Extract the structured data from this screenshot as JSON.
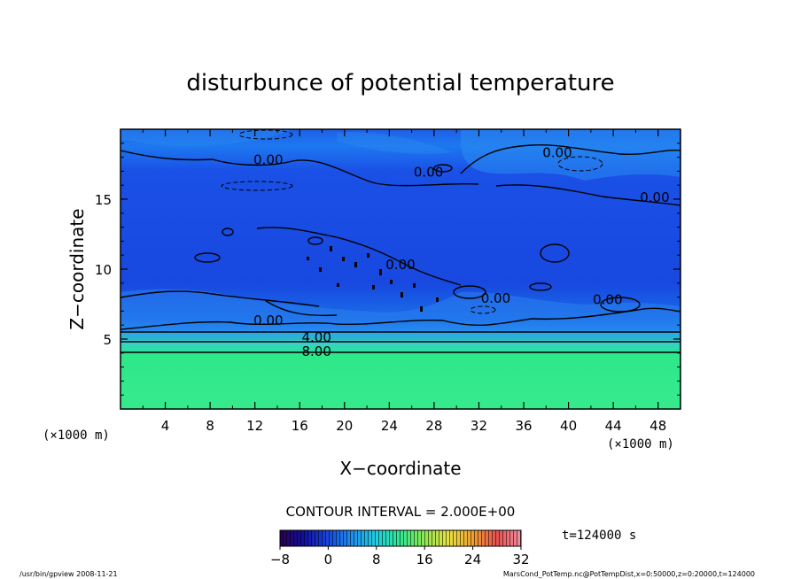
{
  "chart_data": {
    "type": "heatmap",
    "title": "disturbunce of potential temperature",
    "xlabel": "X−coordinate",
    "ylabel": "Z−coordinate",
    "x_unit_left": "(×1000 m)",
    "x_unit_right": "(×1000 m)",
    "xlim": [
      0,
      50
    ],
    "ylim": [
      0,
      20
    ],
    "x_ticks": [
      4,
      8,
      12,
      16,
      20,
      24,
      28,
      32,
      36,
      40,
      44,
      48
    ],
    "y_ticks": [
      5,
      10,
      15
    ],
    "contour_interval": "CONTOUR INTERVAL = 2.000E+00",
    "time_label": "t=124000 s",
    "colorbar": {
      "min": -8,
      "max": 32,
      "tick_labels": [
        "−8",
        "0",
        "8",
        "16",
        "24",
        "32"
      ],
      "tick_values": [
        -8,
        0,
        8,
        16,
        24,
        32
      ]
    },
    "contour_labels": [
      {
        "text": "0.00",
        "x": 13.2,
        "z": 17.5
      },
      {
        "text": "0.00",
        "x": 27.5,
        "z": 16.6
      },
      {
        "text": "0.00",
        "x": 39.0,
        "z": 18.0
      },
      {
        "text": "0.00",
        "x": 47.7,
        "z": 14.8
      },
      {
        "text": "0.00",
        "x": 25.0,
        "z": 10.0
      },
      {
        "text": "0.00",
        "x": 33.5,
        "z": 7.6
      },
      {
        "text": "0.00",
        "x": 43.5,
        "z": 7.5
      },
      {
        "text": "0.00",
        "x": 13.2,
        "z": 6.0
      },
      {
        "text": "4.00",
        "x": 17.5,
        "z": 4.8
      },
      {
        "text": "8.00",
        "x": 17.5,
        "z": 3.8
      }
    ],
    "grid": false,
    "legend": "bottom-center"
  },
  "footer": {
    "left": "/usr/bin/gpview   2008-11-21",
    "right": "MarsCond_PotTemp.nc@PotTempDist,x=0:50000,z=0:20000,t=124000"
  }
}
